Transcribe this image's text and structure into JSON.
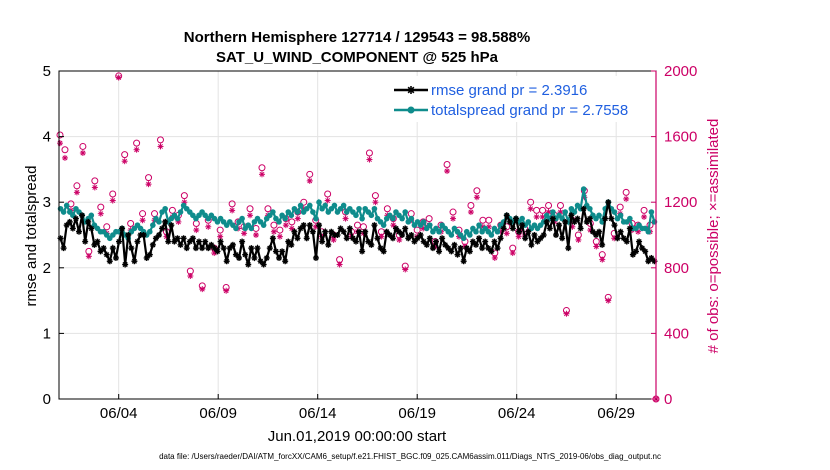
{
  "chart_data": {
    "type": "line",
    "title_line1": "Northern Hemisphere 127714 / 129543 = 98.588%",
    "title_line2": "SAT_U_WIND_COMPONENT @ 525 hPa",
    "xlabel": "Jun.01,2019 00:00:00 start",
    "ylabel_left": "rmse and totalspread",
    "ylabel_right": "# of obs: o=possible; ×=assimilated",
    "footer": "data file: /Users/raeder/DAI/ATM_forcXX/CAM6_setup/f.e21.FHIST_BGC.f09_025.CAM6assim.011/Diags_NTrS_2019-06/obs_diag_output.nc",
    "x_range": [
      0,
      30
    ],
    "x_ticks": [
      {
        "value": 3,
        "label": "06/04"
      },
      {
        "value": 8,
        "label": "06/09"
      },
      {
        "value": 13,
        "label": "06/14"
      },
      {
        "value": 18,
        "label": "06/19"
      },
      {
        "value": 23,
        "label": "06/24"
      },
      {
        "value": 28,
        "label": "06/29"
      }
    ],
    "y_left": {
      "range": [
        0,
        5
      ],
      "ticks": [
        "0",
        "1",
        "2",
        "3",
        "4",
        "5"
      ]
    },
    "y_right": {
      "range": [
        0,
        2000
      ],
      "ticks": [
        "0",
        "400",
        "800",
        "1200",
        "1600",
        "2000"
      ]
    },
    "grid": true,
    "legend_position": "top-right",
    "series": [
      {
        "name": "rmse grand pr = 2.3916",
        "color": "#000000",
        "marker": "asterisk",
        "axis": "left",
        "values": [
          2.45,
          2.3,
          2.65,
          2.7,
          2.6,
          2.75,
          2.55,
          2.8,
          2.4,
          2.7,
          2.6,
          2.35,
          2.4,
          2.25,
          2.3,
          2.2,
          2.1,
          2.3,
          2.15,
          2.4,
          2.6,
          2.05,
          2.5,
          2.3,
          2.1,
          2.4,
          2.5,
          2.5,
          2.15,
          2.2,
          2.35,
          2.45,
          2.5,
          2.6,
          2.7,
          2.4,
          2.65,
          2.4,
          2.45,
          2.35,
          2.45,
          2.3,
          2.4,
          2.45,
          2.3,
          2.4,
          2.3,
          2.4,
          2.3,
          2.35,
          2.3,
          2.25,
          2.4,
          2.3,
          2.1,
          2.3,
          2.35,
          2.2,
          2.15,
          2.4,
          2.2,
          2.05,
          2.3,
          2.15,
          2.3,
          2.1,
          2.05,
          2.15,
          2.3,
          2.45,
          2.25,
          2.15,
          2.25,
          2.1,
          2.4,
          2.35,
          2.55,
          2.45,
          2.6,
          2.65,
          2.45,
          2.65,
          2.55,
          2.15,
          2.65,
          2.4,
          2.55,
          2.35,
          2.55,
          2.5,
          2.5,
          2.6,
          2.55,
          2.45,
          2.6,
          2.45,
          2.4,
          2.55,
          2.25,
          2.55,
          2.4,
          2.35,
          2.65,
          2.45,
          2.3,
          2.25,
          2.55,
          2.5,
          2.45,
          2.6,
          2.55,
          2.5,
          2.6,
          2.45,
          2.5,
          2.4,
          2.45,
          2.5,
          2.4,
          2.35,
          2.45,
          2.3,
          2.4,
          2.25,
          2.45,
          2.35,
          2.3,
          2.25,
          2.35,
          2.2,
          2.3,
          2.1,
          2.3,
          2.25,
          2.4,
          2.35,
          2.45,
          2.3,
          2.4,
          2.3,
          2.25,
          2.4,
          2.3,
          2.45,
          2.6,
          2.8,
          2.7,
          2.6,
          2.75,
          2.55,
          2.65,
          2.45,
          2.55,
          2.35,
          2.5,
          2.4,
          2.45,
          2.5,
          2.7,
          2.6,
          2.75,
          2.5,
          2.65,
          2.45,
          2.7,
          2.3,
          2.8,
          2.7,
          2.75,
          2.6,
          2.9,
          2.7,
          2.75,
          2.55,
          2.5,
          2.55,
          2.35,
          2.75,
          3.0,
          2.75,
          2.65,
          2.45,
          2.55,
          2.45,
          2.4,
          2.6,
          2.2,
          2.25,
          2.4,
          2.3,
          2.25,
          2.1,
          2.15,
          2.1
        ]
      },
      {
        "name": "totalspread grand pr = 2.7558",
        "color": "#0f8c8c",
        "marker": "circle",
        "axis": "left",
        "values": [
          2.9,
          2.85,
          2.95,
          2.85,
          2.8,
          2.9,
          2.85,
          2.8,
          2.7,
          2.75,
          2.8,
          2.65,
          2.6,
          2.55,
          2.55,
          2.5,
          2.45,
          2.5,
          2.55,
          2.55,
          2.6,
          2.5,
          2.45,
          2.55,
          2.6,
          2.65,
          2.6,
          2.55,
          2.5,
          2.55,
          2.65,
          2.75,
          2.7,
          2.85,
          2.9,
          2.7,
          2.75,
          2.8,
          2.75,
          2.85,
          2.95,
          2.9,
          2.85,
          2.8,
          2.75,
          2.8,
          2.85,
          2.8,
          2.75,
          2.8,
          2.75,
          2.7,
          2.75,
          2.7,
          2.65,
          2.7,
          2.65,
          2.6,
          2.7,
          2.75,
          2.6,
          2.65,
          2.6,
          2.7,
          2.75,
          2.7,
          2.65,
          2.75,
          2.8,
          2.85,
          2.75,
          2.7,
          2.8,
          2.75,
          2.85,
          2.8,
          2.9,
          2.85,
          2.95,
          2.85,
          2.9,
          2.95,
          2.85,
          2.75,
          3.0,
          2.9,
          2.95,
          2.85,
          2.9,
          2.95,
          2.85,
          2.9,
          2.95,
          2.85,
          2.9,
          2.85,
          2.8,
          2.9,
          2.75,
          2.9,
          2.85,
          2.8,
          2.9,
          2.75,
          2.7,
          2.65,
          2.75,
          2.8,
          2.75,
          2.85,
          2.8,
          2.75,
          2.85,
          2.7,
          2.75,
          2.65,
          2.7,
          2.65,
          2.7,
          2.6,
          2.65,
          2.55,
          2.6,
          2.55,
          2.65,
          2.6,
          2.55,
          2.5,
          2.6,
          2.55,
          2.5,
          2.45,
          2.55,
          2.5,
          2.6,
          2.55,
          2.65,
          2.55,
          2.6,
          2.55,
          2.5,
          2.6,
          2.55,
          2.65,
          2.7,
          2.8,
          2.75,
          2.7,
          2.75,
          2.7,
          2.75,
          2.65,
          2.7,
          2.6,
          2.65,
          2.6,
          2.65,
          2.7,
          2.8,
          2.75,
          2.85,
          2.75,
          2.8,
          2.75,
          2.85,
          2.7,
          2.9,
          2.85,
          2.95,
          2.9,
          3.2,
          2.95,
          2.9,
          2.8,
          2.75,
          2.8,
          2.7,
          2.9,
          3.0,
          2.9,
          2.85,
          2.75,
          2.8,
          2.7,
          2.7,
          2.75,
          2.6,
          2.6,
          2.65,
          2.6,
          2.6,
          2.55,
          2.85,
          2.7
        ]
      },
      {
        "name": "obs possible",
        "color": "#cc0066",
        "marker": "open-circle",
        "axis": "right",
        "x": [
          0.05,
          0.3,
          0.6,
          0.9,
          1.2,
          1.5,
          1.8,
          2.1,
          2.4,
          2.7,
          3.0,
          3.3,
          3.6,
          3.9,
          4.2,
          4.5,
          4.8,
          5.1,
          5.4,
          5.7,
          6.0,
          6.3,
          6.6,
          6.9,
          7.2,
          7.5,
          7.8,
          8.1,
          8.4,
          8.7,
          9.0,
          9.3,
          9.6,
          9.9,
          10.2,
          10.5,
          10.8,
          11.1,
          11.4,
          11.7,
          12.0,
          12.3,
          12.6,
          12.9,
          13.2,
          13.5,
          13.8,
          14.1,
          14.4,
          14.7,
          15.0,
          15.3,
          15.6,
          15.9,
          16.2,
          16.5,
          16.8,
          17.1,
          17.4,
          17.7,
          18.0,
          18.3,
          18.6,
          18.9,
          19.2,
          19.5,
          19.8,
          20.1,
          20.4,
          20.7,
          21.0,
          21.3,
          21.6,
          21.9,
          22.2,
          22.5,
          22.8,
          23.1,
          23.4,
          23.7,
          24.0,
          24.3,
          24.6,
          24.9,
          25.2,
          25.5,
          25.8,
          26.1,
          26.4,
          26.7,
          27.0,
          27.3,
          27.6,
          27.9,
          28.2,
          28.5,
          28.8,
          29.1,
          29.4,
          29.7,
          30.0
        ],
        "values": [
          1610,
          1520,
          1190,
          1300,
          1540,
          900,
          1330,
          1170,
          1050,
          1250,
          1970,
          1490,
          1070,
          1560,
          1130,
          1350,
          1130,
          1580,
          1020,
          1150,
          1120,
          1240,
          780,
          1070,
          690,
          1090,
          920,
          1030,
          680,
          1190,
          1080,
          1050,
          1160,
          1040,
          1410,
          1160,
          1060,
          1030,
          1100,
          1080,
          1140,
          1200,
          1370,
          1090,
          1020,
          1250,
          1000,
          850,
          1140,
          1020,
          1060,
          1050,
          1500,
          1240,
          1020,
          1160,
          1100,
          1000,
          810,
          1130,
          1030,
          1080,
          1100,
          960,
          1060,
          1430,
          1140,
          1030,
          960,
          1180,
          1270,
          1090,
          1090,
          890,
          1060,
          1050,
          920,
          1020,
          1040,
          1200,
          1150,
          1150,
          1180,
          1120,
          1180,
          540,
          1090,
          1000,
          1270,
          1070,
          960,
          880,
          620,
          1010,
          1170,
          1260,
          1070,
          1060,
          1150,
          1060,
          0
        ]
      },
      {
        "name": "obs assimilated",
        "color": "#cc0066",
        "marker": "asterisk",
        "axis": "right",
        "x": [
          0.05,
          0.3,
          0.6,
          0.9,
          1.2,
          1.5,
          1.8,
          2.1,
          2.4,
          2.7,
          3.0,
          3.3,
          3.6,
          3.9,
          4.2,
          4.5,
          4.8,
          5.1,
          5.4,
          5.7,
          6.0,
          6.3,
          6.6,
          6.9,
          7.2,
          7.5,
          7.8,
          8.1,
          8.4,
          8.7,
          9.0,
          9.3,
          9.6,
          9.9,
          10.2,
          10.5,
          10.8,
          11.1,
          11.4,
          11.7,
          12.0,
          12.3,
          12.6,
          12.9,
          13.2,
          13.5,
          13.8,
          14.1,
          14.4,
          14.7,
          15.0,
          15.3,
          15.6,
          15.9,
          16.2,
          16.5,
          16.8,
          17.1,
          17.4,
          17.7,
          18.0,
          18.3,
          18.6,
          18.9,
          19.2,
          19.5,
          19.8,
          20.1,
          20.4,
          20.7,
          21.0,
          21.3,
          21.6,
          21.9,
          22.2,
          22.5,
          22.8,
          23.1,
          23.4,
          23.7,
          24.0,
          24.3,
          24.6,
          24.9,
          25.2,
          25.5,
          25.8,
          26.1,
          26.4,
          26.7,
          27.0,
          27.3,
          27.6,
          27.9,
          28.2,
          28.5,
          28.8,
          29.1,
          29.4,
          29.7,
          30.0
        ],
        "values": [
          1560,
          1470,
          1150,
          1260,
          1500,
          870,
          1290,
          1130,
          1010,
          1210,
          1960,
          1450,
          1030,
          1520,
          1090,
          1310,
          1090,
          1540,
          990,
          1110,
          1080,
          1200,
          750,
          1030,
          670,
          1050,
          890,
          990,
          660,
          1150,
          1040,
          1010,
          1120,
          1000,
          1370,
          1120,
          1020,
          990,
          1060,
          1040,
          1100,
          1160,
          1330,
          1050,
          990,
          1210,
          970,
          820,
          1100,
          990,
          1020,
          1010,
          1460,
          1200,
          990,
          1120,
          1060,
          970,
          790,
          1090,
          990,
          1040,
          1060,
          930,
          1020,
          1390,
          1100,
          990,
          930,
          1140,
          1230,
          1050,
          1050,
          860,
          1020,
          1010,
          890,
          990,
          1000,
          1160,
          1110,
          1110,
          1140,
          1080,
          1140,
          520,
          1050,
          970,
          1230,
          1030,
          930,
          850,
          600,
          980,
          1130,
          1220,
          1030,
          1020,
          1110,
          1020,
          0
        ]
      }
    ]
  }
}
